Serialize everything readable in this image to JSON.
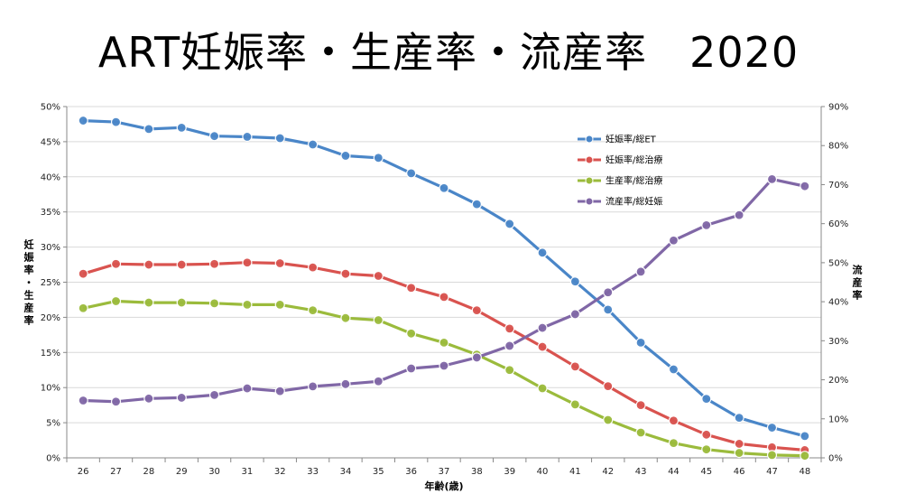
{
  "title": "ART妊娠率・生産率・流産率　2020",
  "chart_data": {
    "type": "line",
    "title": "ART妊娠率・生産率・流産率　2020",
    "xlabel": "年齢(歳)",
    "ylabel_left": "妊娠率・生産率",
    "ylabel_right": "流産率",
    "x": [
      26,
      27,
      28,
      29,
      30,
      31,
      32,
      33,
      34,
      35,
      36,
      37,
      38,
      39,
      40,
      41,
      42,
      43,
      44,
      45,
      46,
      47,
      48
    ],
    "ylim_left": [
      0,
      50
    ],
    "ylim_right": [
      0,
      90
    ],
    "left_ticks": [
      "0%",
      "5%",
      "10%",
      "15%",
      "20%",
      "25%",
      "30%",
      "35%",
      "40%",
      "45%",
      "50%"
    ],
    "right_ticks": [
      "0%",
      "10%",
      "20%",
      "30%",
      "40%",
      "50%",
      "60%",
      "70%",
      "80%",
      "90%"
    ],
    "grid": true,
    "legend_position": "top-right",
    "series": [
      {
        "name": "妊娠率/総ET",
        "axis": "left",
        "color": "#4a86c8",
        "values": [
          48.0,
          47.8,
          46.8,
          47.0,
          45.8,
          45.7,
          45.5,
          44.6,
          43.0,
          42.7,
          40.5,
          38.4,
          36.1,
          33.3,
          29.2,
          25.1,
          21.1,
          16.4,
          12.6,
          8.4,
          5.7,
          4.3,
          3.1
        ]
      },
      {
        "name": "妊娠率/総治療",
        "axis": "left",
        "color": "#d9534f",
        "values": [
          26.2,
          27.6,
          27.5,
          27.5,
          27.6,
          27.8,
          27.7,
          27.1,
          26.2,
          25.9,
          24.2,
          22.9,
          21.0,
          18.4,
          15.8,
          13.0,
          10.2,
          7.5,
          5.3,
          3.3,
          2.0,
          1.5,
          1.1
        ]
      },
      {
        "name": "生産率/総治療",
        "axis": "left",
        "color": "#9bbb3c",
        "values": [
          21.3,
          22.3,
          22.1,
          22.1,
          22.0,
          21.8,
          21.8,
          21.0,
          19.9,
          19.6,
          17.7,
          16.4,
          14.7,
          12.5,
          9.9,
          7.6,
          5.4,
          3.6,
          2.1,
          1.2,
          0.7,
          0.4,
          0.3
        ]
      },
      {
        "name": "流産率/総妊娠",
        "axis": "right",
        "color": "#8067a6",
        "values": [
          14.7,
          14.4,
          15.2,
          15.4,
          16.1,
          17.8,
          17.1,
          18.3,
          18.9,
          19.6,
          22.9,
          23.6,
          25.7,
          28.7,
          33.3,
          36.8,
          42.4,
          47.7,
          55.7,
          59.6,
          62.2,
          71.4,
          69.6
        ]
      }
    ]
  }
}
